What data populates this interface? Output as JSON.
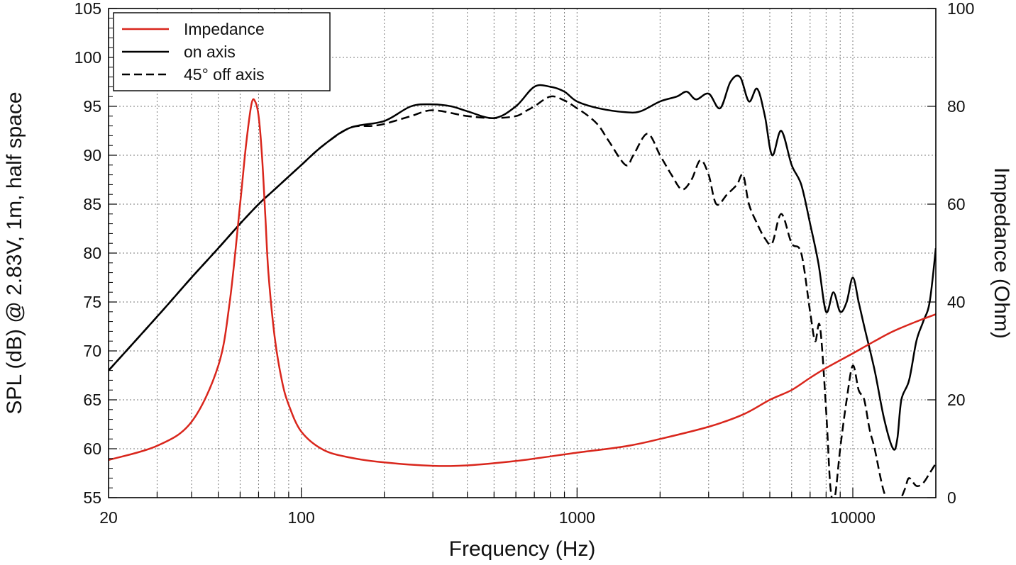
{
  "chart_data": {
    "type": "line",
    "x_scale": "log",
    "xlim": [
      20,
      20000
    ],
    "ylim_left": [
      55,
      105
    ],
    "ylim_right": [
      0,
      100
    ],
    "grid": true,
    "legend_position": "top-left",
    "xlabel": "Frequency (Hz)",
    "ylabel_left": "SPL (dB) @ 2.83V, 1m, half space",
    "ylabel_right": "Impedance (Ohm)",
    "x_ticks": [
      "20",
      "100",
      "1000",
      "10000"
    ],
    "x_tick_values": [
      20,
      100,
      1000,
      10000
    ],
    "y_ticks_left": [
      55,
      60,
      65,
      70,
      75,
      80,
      85,
      90,
      95,
      100,
      105
    ],
    "y_ticks_right": [
      0,
      20,
      40,
      60,
      80,
      100
    ],
    "series": [
      {
        "name": "Impedance",
        "axis": "right",
        "color": "#d9261c",
        "style": "solid",
        "x": [
          20,
          30,
          40,
          50,
          55,
          60,
          63,
          66,
          68,
          70,
          72,
          74,
          76,
          80,
          85,
          90,
          100,
          120,
          150,
          200,
          300,
          400,
          600,
          1000,
          1500,
          2000,
          3000,
          4000,
          5000,
          6000,
          7000,
          8000,
          10000,
          12000,
          14000,
          17000,
          20000
        ],
        "values": [
          7.7,
          10.6,
          15.5,
          27,
          40,
          60,
          72,
          80.5,
          81,
          78,
          70,
          58,
          46,
          33,
          24,
          19,
          13.5,
          9.8,
          8.2,
          7.2,
          6.5,
          6.6,
          7.5,
          9.2,
          10.5,
          12,
          14.5,
          17,
          20,
          22,
          24.5,
          26.5,
          29.5,
          32,
          34,
          36,
          37.5
        ]
      },
      {
        "name": "on axis",
        "axis": "left",
        "color": "#000000",
        "style": "solid",
        "x": [
          20,
          30,
          40,
          50,
          60,
          70,
          80,
          100,
          120,
          150,
          200,
          250,
          300,
          350,
          400,
          500,
          600,
          700,
          800,
          900,
          1000,
          1200,
          1500,
          1700,
          2000,
          2300,
          2500,
          2700,
          3000,
          3300,
          3600,
          3900,
          4200,
          4500,
          4800,
          5100,
          5500,
          6000,
          6500,
          7000,
          7500,
          8000,
          8500,
          9000,
          9500,
          10000,
          10500,
          11000,
          12000,
          13000,
          14000,
          14500,
          15000,
          16000,
          17000,
          18000,
          19000,
          20000
        ],
        "values": [
          68,
          73.5,
          77.5,
          80.5,
          83,
          85,
          86.5,
          89,
          91,
          92.8,
          93.5,
          95,
          95.2,
          95,
          94.5,
          93.8,
          95,
          97,
          97,
          96.5,
          95.5,
          94.8,
          94.4,
          94.5,
          95.5,
          96,
          96.5,
          95.7,
          96.3,
          94.8,
          97.5,
          98,
          95.5,
          96.8,
          94,
          90,
          92.5,
          89,
          87,
          83,
          79,
          74,
          76,
          74,
          75,
          77.5,
          75,
          72.5,
          68,
          63,
          60,
          61,
          65,
          67,
          71,
          73,
          75,
          80.5
        ]
      },
      {
        "name": "45° off axis",
        "axis": "left",
        "color": "#000000",
        "style": "dashed",
        "x": [
          20,
          30,
          40,
          50,
          60,
          70,
          80,
          100,
          120,
          150,
          180,
          200,
          250,
          300,
          400,
          500,
          600,
          650,
          700,
          800,
          900,
          1000,
          1100,
          1200,
          1300,
          1500,
          1600,
          1800,
          2000,
          2200,
          2400,
          2600,
          2800,
          3000,
          3200,
          3500,
          3800,
          4000,
          4200,
          4500,
          4800,
          5100,
          5500,
          6000,
          6500,
          7000,
          7300,
          7600,
          8000,
          8300,
          8600,
          9000,
          9500,
          10000,
          10500,
          11000,
          11500,
          12000,
          13000,
          14000,
          14500,
          15000,
          15500,
          16000,
          17000,
          18000,
          19000,
          20000
        ],
        "values": [
          68,
          73.5,
          77.5,
          80.5,
          83,
          85,
          86.5,
          89,
          91,
          92.8,
          93,
          93.2,
          94,
          94.6,
          94,
          93.8,
          94,
          94.5,
          95,
          96,
          95.6,
          94.8,
          94,
          93,
          91.5,
          89,
          90,
          92.2,
          90,
          88,
          86.5,
          87.5,
          89.5,
          88,
          85,
          86,
          87,
          88,
          85,
          83,
          81.5,
          81,
          84,
          81,
          80,
          74,
          71,
          72.5,
          64,
          56,
          55,
          60,
          65,
          68.5,
          66,
          65,
          62,
          60,
          55.5,
          54.3,
          54.2,
          55,
          56,
          57,
          56.2,
          56.5,
          57.5,
          58.5
        ]
      }
    ]
  }
}
